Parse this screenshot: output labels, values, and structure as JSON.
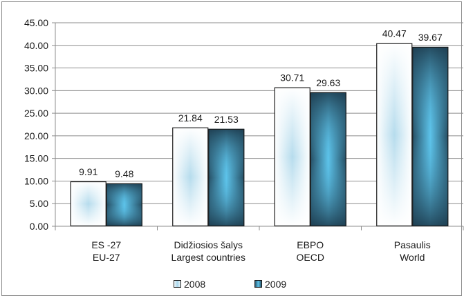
{
  "chart_data": {
    "type": "bar",
    "categories": [
      [
        "ES -27",
        "EU-27"
      ],
      [
        "Didžiosios šalys",
        "Largest countries"
      ],
      [
        "EBPO",
        "OECD"
      ],
      [
        "Pasaulis",
        "World"
      ]
    ],
    "series": [
      {
        "name": "2008",
        "values": [
          9.91,
          21.84,
          30.71,
          40.47
        ],
        "labels": [
          "9.91",
          "21.84",
          "30.71",
          "40.47"
        ]
      },
      {
        "name": "2009",
        "values": [
          9.48,
          21.53,
          29.63,
          39.67
        ],
        "labels": [
          "9.48",
          "21.53",
          "29.63",
          "39.67"
        ]
      }
    ],
    "yticks": [
      "0.00",
      "5.00",
      "10.00",
      "15.00",
      "20.00",
      "25.00",
      "30.00",
      "35.00",
      "40.00",
      "45.00"
    ],
    "ylim": [
      0,
      45
    ],
    "grid": true,
    "legend_position": "bottom",
    "colors": {
      "2008_center": "#a9d6ea",
      "2008_edge": "#ffffff",
      "2009_center": "#5dc3ea",
      "2009_edge": "#1e3f52",
      "grid": "#8c8c8c"
    }
  }
}
